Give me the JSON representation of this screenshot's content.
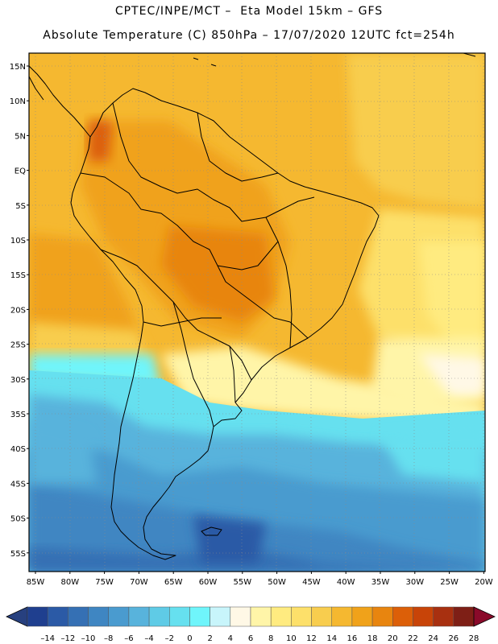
{
  "header": {
    "line1": "CPTEC/INPE/MCT –  Eta Model 15km – GFS",
    "line2": "Absolute Temperature (C) 850hPa – 17/07/2020 12UTC fct=254h"
  },
  "map": {
    "lat_labels": [
      "15N",
      "10N",
      "5N",
      "EQ",
      "5S",
      "10S",
      "15S",
      "20S",
      "25S",
      "30S",
      "35S",
      "40S",
      "45S",
      "50S",
      "55S"
    ],
    "lon_labels": [
      "85W",
      "80W",
      "75W",
      "70W",
      "65W",
      "60W",
      "55W",
      "50W",
      "45W",
      "40W",
      "35W",
      "30W",
      "25W",
      "20W"
    ]
  },
  "colorbar": {
    "labels": [
      "-14",
      "-12",
      "-10",
      "-8",
      "-6",
      "-4",
      "-2",
      "0",
      "2",
      "4",
      "6",
      "8",
      "10",
      "12",
      "14",
      "16",
      "18",
      "20",
      "22",
      "24",
      "26",
      "28"
    ],
    "colors": [
      "#1f3f8f",
      "#2b5aa6",
      "#3570b4",
      "#3f86c2",
      "#4a9bcf",
      "#58b3dc",
      "#5fcbe6",
      "#66e0ef",
      "#6ff5fb",
      "#c8f5fb",
      "#fff8e6",
      "#fff5a8",
      "#ffeb80",
      "#fde06a",
      "#f8cd4e",
      "#f5b830",
      "#f0a21a",
      "#e8850f",
      "#dc5f08",
      "#c84408",
      "#a83010",
      "#7e1f16"
    ],
    "under_color": "#27407f",
    "over_color": "#8a0a2a"
  }
}
